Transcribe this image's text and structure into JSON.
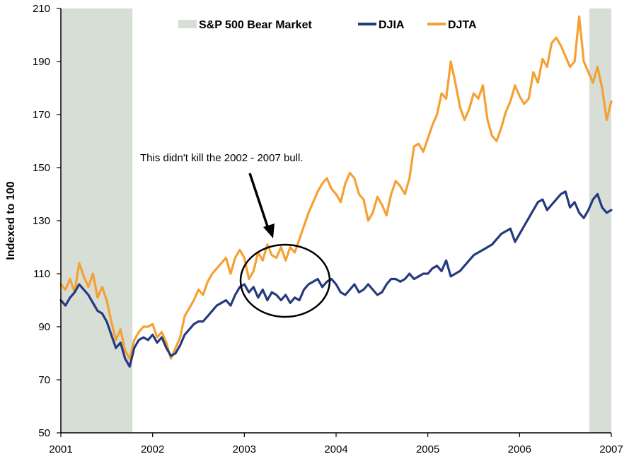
{
  "chart_data": {
    "type": "line",
    "title": "",
    "xlabel": "",
    "ylabel": "Indexed to 100",
    "xlim": [
      2001,
      2007
    ],
    "ylim": [
      50,
      210
    ],
    "x_ticks": [
      "2001",
      "2002",
      "2003",
      "2004",
      "2005",
      "2006",
      "2007"
    ],
    "y_ticks": [
      "50",
      "70",
      "90",
      "110",
      "130",
      "150",
      "170",
      "190",
      "210"
    ],
    "grid": false,
    "legend_position": "top",
    "legend": [
      {
        "label": "S&P 500 Bear Market",
        "kind": "band",
        "color": "#d6ded6"
      },
      {
        "label": "DJIA",
        "kind": "line",
        "color": "#253a7e"
      },
      {
        "label": "DJTA",
        "kind": "line",
        "color": "#f5a033"
      }
    ],
    "bands": [
      {
        "name": "S&P 500 Bear Market",
        "start": 2001.0,
        "end": 2001.78
      },
      {
        "name": "S&P 500 Bear Market",
        "start": 2006.76,
        "end": 2007.0
      }
    ],
    "series": [
      {
        "name": "DJTA",
        "color": "#f5a033",
        "x": [
          2001.0,
          2001.05,
          2001.1,
          2001.15,
          2001.2,
          2001.25,
          2001.3,
          2001.35,
          2001.4,
          2001.45,
          2001.5,
          2001.55,
          2001.6,
          2001.65,
          2001.7,
          2001.75,
          2001.8,
          2001.85,
          2001.9,
          2001.95,
          2002.0,
          2002.05,
          2002.1,
          2002.15,
          2002.2,
          2002.25,
          2002.3,
          2002.35,
          2002.4,
          2002.45,
          2002.5,
          2002.55,
          2002.6,
          2002.65,
          2002.7,
          2002.75,
          2002.8,
          2002.85,
          2002.9,
          2002.95,
          2003.0,
          2003.05,
          2003.1,
          2003.15,
          2003.2,
          2003.25,
          2003.3,
          2003.35,
          2003.4,
          2003.45,
          2003.5,
          2003.55,
          2003.6,
          2003.65,
          2003.7,
          2003.75,
          2003.8,
          2003.85,
          2003.9,
          2003.95,
          2004.0,
          2004.05,
          2004.1,
          2004.15,
          2004.2,
          2004.25,
          2004.3,
          2004.35,
          2004.4,
          2004.45,
          2004.5,
          2004.55,
          2004.6,
          2004.65,
          2004.7,
          2004.75,
          2004.8,
          2004.85,
          2004.9,
          2004.95,
          2005.0,
          2005.05,
          2005.1,
          2005.15,
          2005.2,
          2005.25,
          2005.3,
          2005.35,
          2005.4,
          2005.45,
          2005.5,
          2005.55,
          2005.6,
          2005.65,
          2005.7,
          2005.75,
          2005.8,
          2005.85,
          2005.9,
          2005.95,
          2006.0,
          2006.05,
          2006.1,
          2006.15,
          2006.2,
          2006.25,
          2006.3,
          2006.35,
          2006.4,
          2006.45,
          2006.5,
          2006.55,
          2006.6,
          2006.65,
          2006.7,
          2006.75,
          2006.8,
          2006.85,
          2006.9,
          2006.95,
          2007.0
        ],
        "values": [
          106,
          104,
          108,
          103,
          114,
          109,
          105,
          110,
          101,
          105,
          100,
          92,
          85,
          89,
          81,
          78,
          85,
          88,
          90,
          90,
          91,
          86,
          88,
          84,
          78,
          82,
          86,
          94,
          97,
          100,
          104,
          102,
          107,
          110,
          112,
          114,
          116,
          110,
          116,
          119,
          116,
          108,
          111,
          118,
          115,
          121,
          117,
          116,
          120,
          115,
          120,
          118,
          123,
          128,
          133,
          137,
          141,
          144,
          146,
          142,
          140,
          137,
          144,
          148,
          146,
          140,
          138,
          130,
          133,
          139,
          136,
          132,
          140,
          145,
          143,
          140,
          146,
          158,
          159,
          156,
          161,
          166,
          170,
          178,
          176,
          190,
          182,
          173,
          168,
          172,
          178,
          176,
          181,
          168,
          162,
          160,
          165,
          171,
          175,
          181,
          177,
          174,
          176,
          186,
          182,
          191,
          188,
          197,
          199,
          196,
          192,
          188,
          190,
          207,
          190,
          186,
          182,
          188,
          180,
          168,
          175
        ]
      },
      {
        "name": "DJIA",
        "color": "#253a7e",
        "x": [
          2001.0,
          2001.05,
          2001.1,
          2001.15,
          2001.2,
          2001.25,
          2001.3,
          2001.35,
          2001.4,
          2001.45,
          2001.5,
          2001.55,
          2001.6,
          2001.65,
          2001.7,
          2001.75,
          2001.8,
          2001.85,
          2001.9,
          2001.95,
          2002.0,
          2002.05,
          2002.1,
          2002.15,
          2002.2,
          2002.25,
          2002.3,
          2002.35,
          2002.4,
          2002.45,
          2002.5,
          2002.55,
          2002.6,
          2002.65,
          2002.7,
          2002.75,
          2002.8,
          2002.85,
          2002.9,
          2002.95,
          2003.0,
          2003.05,
          2003.1,
          2003.15,
          2003.2,
          2003.25,
          2003.3,
          2003.35,
          2003.4,
          2003.45,
          2003.5,
          2003.55,
          2003.6,
          2003.65,
          2003.7,
          2003.75,
          2003.8,
          2003.85,
          2003.9,
          2003.95,
          2004.0,
          2004.05,
          2004.1,
          2004.15,
          2004.2,
          2004.25,
          2004.3,
          2004.35,
          2004.4,
          2004.45,
          2004.5,
          2004.55,
          2004.6,
          2004.65,
          2004.7,
          2004.75,
          2004.8,
          2004.85,
          2004.9,
          2004.95,
          2005.0,
          2005.05,
          2005.1,
          2005.15,
          2005.2,
          2005.25,
          2005.3,
          2005.35,
          2005.4,
          2005.45,
          2005.5,
          2005.55,
          2005.6,
          2005.65,
          2005.7,
          2005.75,
          2005.8,
          2005.85,
          2005.9,
          2005.95,
          2006.0,
          2006.05,
          2006.1,
          2006.15,
          2006.2,
          2006.25,
          2006.3,
          2006.35,
          2006.4,
          2006.45,
          2006.5,
          2006.55,
          2006.6,
          2006.65,
          2006.7,
          2006.75,
          2006.8,
          2006.85,
          2006.9,
          2006.95,
          2007.0
        ],
        "values": [
          100,
          98,
          101,
          103,
          106,
          104,
          102,
          99,
          96,
          95,
          92,
          87,
          82,
          84,
          78,
          75,
          82,
          85,
          86,
          85,
          87,
          84,
          86,
          82,
          79,
          80,
          83,
          87,
          89,
          91,
          92,
          92,
          94,
          96,
          98,
          99,
          100,
          98,
          102,
          105,
          106,
          103,
          105,
          101,
          104,
          100,
          103,
          102,
          100,
          102,
          99,
          101,
          100,
          104,
          106,
          107,
          108,
          105,
          107,
          108,
          106,
          103,
          102,
          104,
          106,
          103,
          104,
          106,
          104,
          102,
          103,
          106,
          108,
          108,
          107,
          108,
          110,
          108,
          109,
          110,
          110,
          112,
          113,
          111,
          115,
          109,
          110,
          111,
          113,
          115,
          117,
          118,
          119,
          120,
          121,
          123,
          125,
          126,
          127,
          122,
          125,
          128,
          131,
          134,
          137,
          138,
          134,
          136,
          138,
          140,
          141,
          135,
          137,
          133,
          131,
          134,
          138,
          140,
          135,
          133,
          134
        ]
      }
    ],
    "annotations": [
      {
        "text": "This didn't kill the 2002 - 2007 bull.",
        "x": 2003.35,
        "y": 123
      }
    ]
  }
}
